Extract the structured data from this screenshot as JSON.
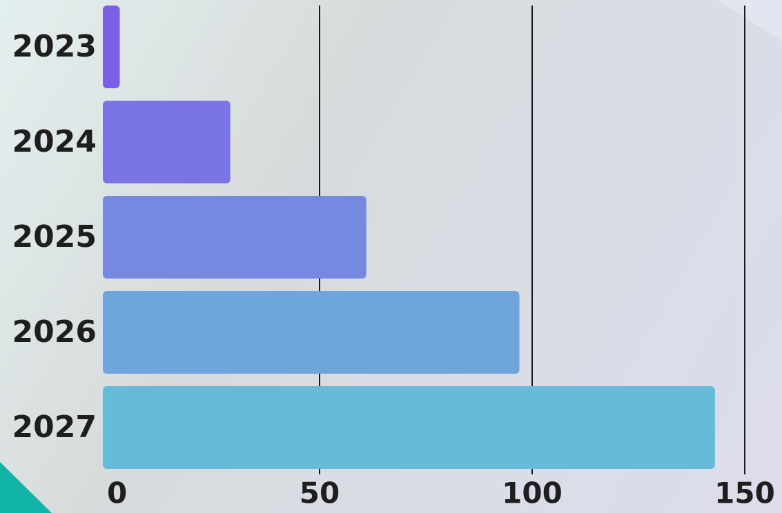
{
  "chart_data": {
    "type": "bar",
    "orientation": "horizontal",
    "categories": [
      "2023",
      "2024",
      "2025",
      "2026",
      "2027"
    ],
    "values": [
      3,
      29,
      61,
      97,
      143
    ],
    "colors": [
      "#7b5fe6",
      "#7a74e4",
      "#7489df",
      "#6ea5da",
      "#66bcd8"
    ],
    "xlim": [
      0,
      150
    ],
    "xticks": [
      0,
      50,
      100,
      150
    ],
    "grid": true
  }
}
